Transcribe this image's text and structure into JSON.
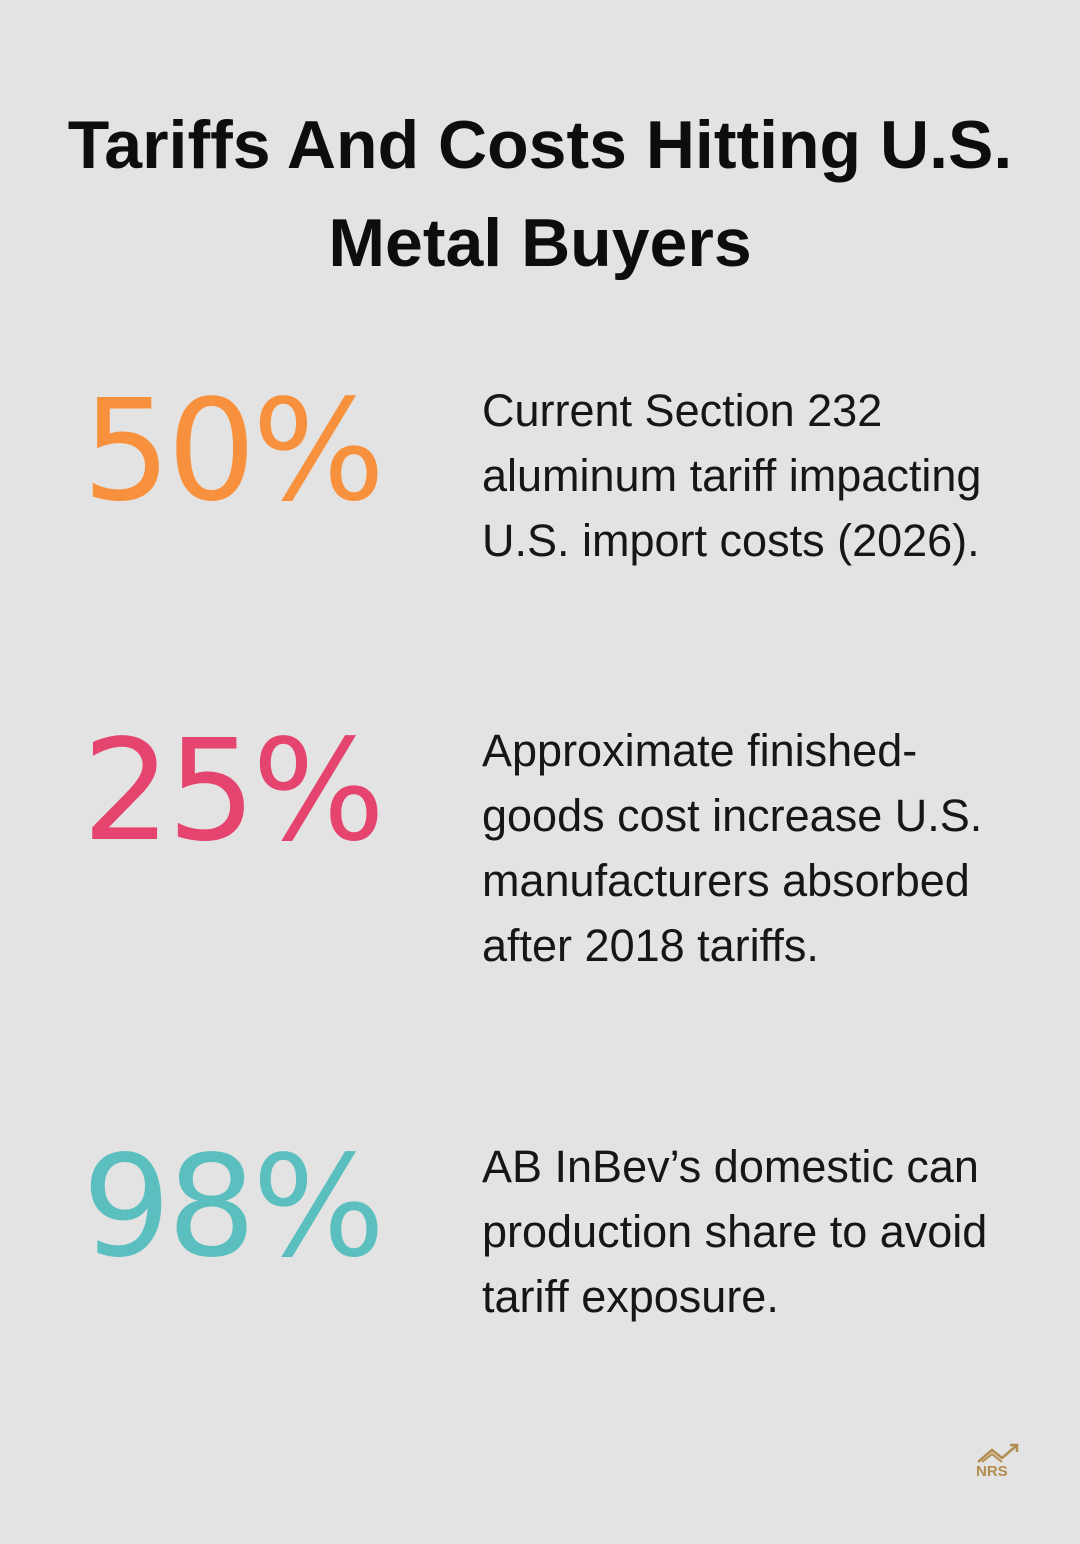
{
  "header": {
    "title": "Tariffs And Costs Hitting U.S. Metal Buyers"
  },
  "stats": [
    {
      "value": "50%",
      "color": "#f8913d",
      "description": "Current Section 232 aluminum tariff impacting U.S. import costs (2026)."
    },
    {
      "value": "25%",
      "color": "#e5446f",
      "description": "Approximate finished-goods cost increase U.S. manufacturers absorbed after 2018 tariffs."
    },
    {
      "value": "98%",
      "color": "#5bbfc0",
      "description": "AB InBev’s domestic can production share to avoid tariff exposure."
    }
  ],
  "logo": {
    "text": "NRS"
  }
}
